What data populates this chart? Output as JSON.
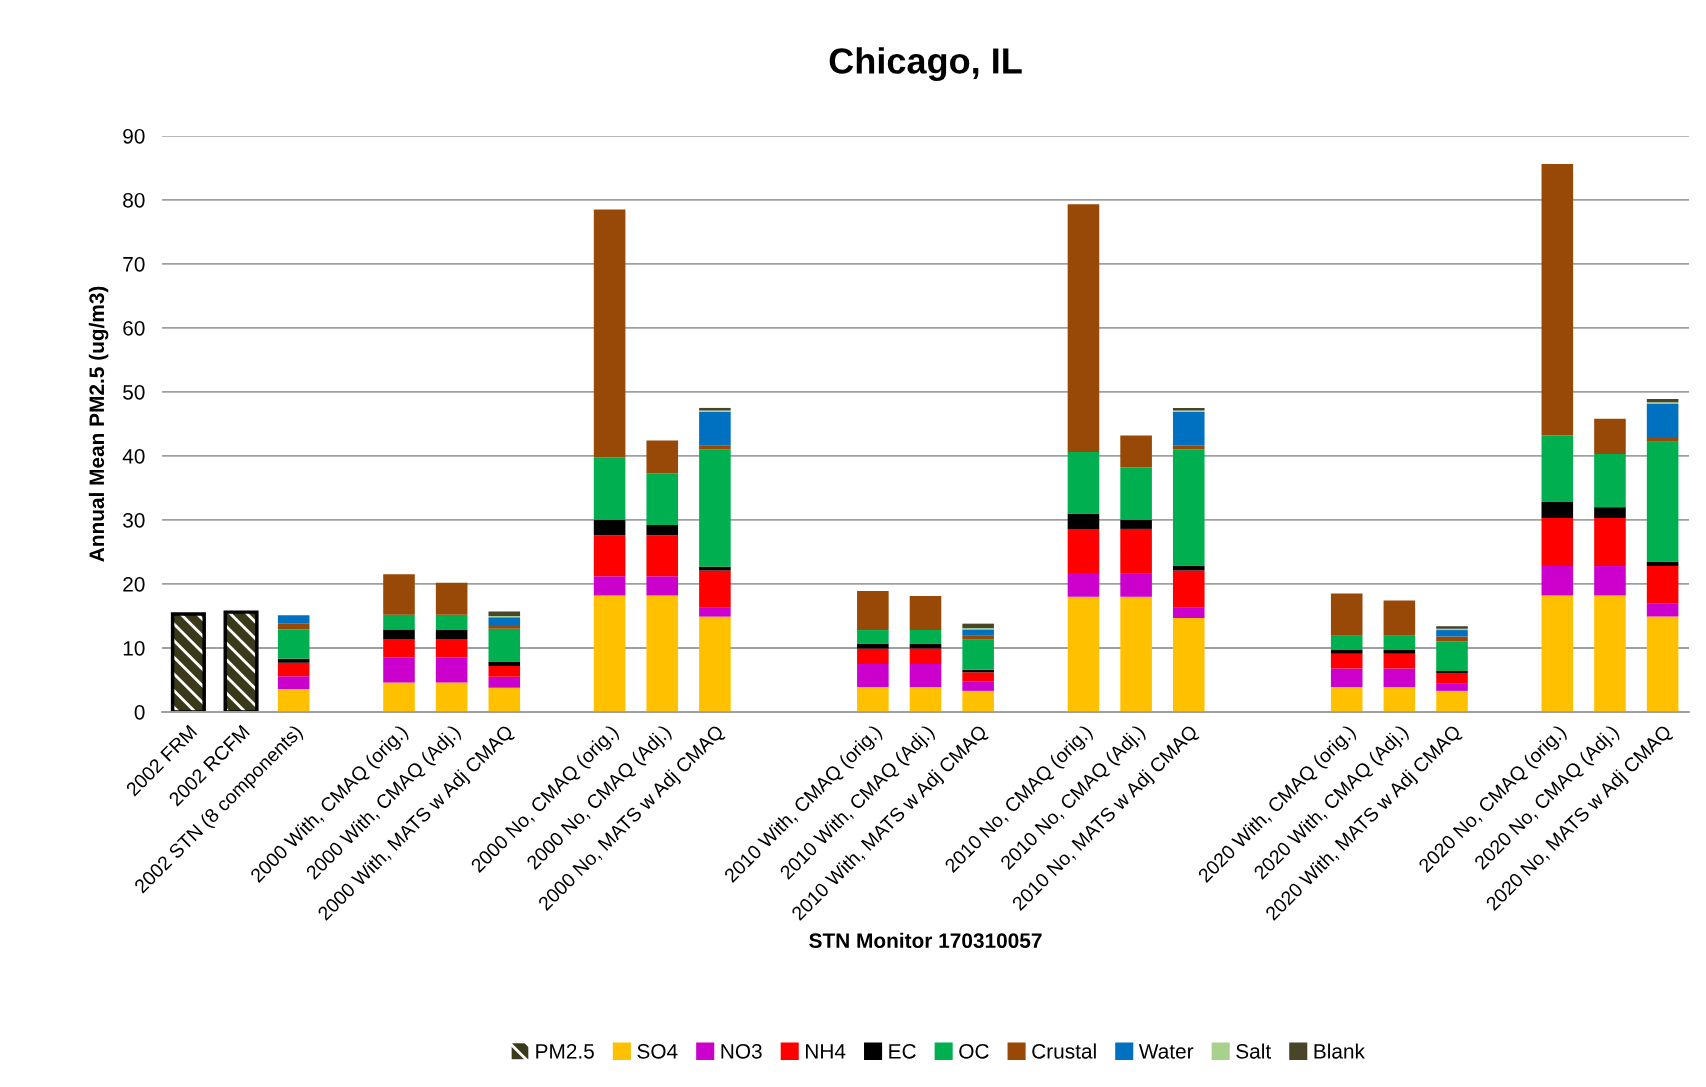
{
  "chart_data": {
    "type": "bar",
    "title": "Chicago, IL",
    "xlabel": "STN Monitor 170310057",
    "ylabel": "Annual Mean PM2.5 (ug/m3)",
    "stacked": true,
    "grid": "y",
    "legend": "bottom",
    "ylim": [
      0,
      90
    ],
    "yticks": [
      0,
      10,
      20,
      30,
      40,
      50,
      60,
      70,
      80,
      90
    ],
    "categories": [
      "2002 FRM",
      "2002 RCFM",
      "2002 STN (8 components)",
      null,
      "2000 With, CMAQ (orig.)",
      "2000 With, CMAQ (Adj.)",
      "2000 With, MATS w Adj CMAQ",
      null,
      "2000 No, CMAQ (orig.)",
      "2000 No, CMAQ (Adj.)",
      "2000 No, MATS w Adj CMAQ",
      null,
      null,
      "2010 With, CMAQ (orig.)",
      "2010 With, CMAQ (Adj.)",
      "2010 With, MATS w Adj CMAQ",
      null,
      "2010 No, CMAQ (orig.)",
      "2010 No, CMAQ (Adj.)",
      "2010 No, MATS w Adj CMAQ",
      null,
      null,
      "2020 With, CMAQ (orig.)",
      "2020 With, CMAQ (Adj.)",
      "2020 With, MATS w Adj CMAQ",
      null,
      "2020 No, CMAQ (orig.)",
      "2020 No, CMAQ (Adj.)",
      "2020 No, MATS w Adj CMAQ"
    ],
    "series": [
      {
        "name": "PM2.5",
        "color": "#3a3a1a",
        "values": [
          15.3,
          15.6,
          null,
          null,
          null,
          null,
          null,
          null,
          null,
          null,
          null,
          null,
          null,
          null,
          null,
          null,
          null,
          null,
          null,
          null,
          null,
          null,
          null,
          null,
          null,
          null,
          null,
          null,
          null
        ]
      },
      {
        "name": "SO4",
        "color": "#ffc000",
        "values": [
          null,
          null,
          3.6,
          null,
          4.6,
          4.6,
          3.8,
          null,
          18.2,
          18.2,
          14.9,
          null,
          null,
          3.9,
          3.9,
          3.3,
          null,
          18.0,
          18.0,
          14.7,
          null,
          null,
          3.9,
          3.9,
          3.3,
          null,
          18.2,
          18.2,
          14.9
        ]
      },
      {
        "name": "NO3",
        "color": "#cc00cc",
        "values": [
          null,
          null,
          2.0,
          null,
          3.9,
          3.9,
          1.7,
          null,
          3.0,
          3.0,
          1.4,
          null,
          null,
          3.6,
          3.6,
          1.5,
          null,
          3.7,
          3.7,
          1.6,
          null,
          null,
          2.9,
          2.9,
          1.1,
          null,
          4.6,
          4.6,
          2.0
        ]
      },
      {
        "name": "NH4",
        "color": "#ff0000",
        "values": [
          null,
          null,
          2.1,
          null,
          2.9,
          2.9,
          1.7,
          null,
          6.4,
          6.4,
          5.8,
          null,
          null,
          2.4,
          2.4,
          1.4,
          null,
          6.9,
          6.9,
          5.8,
          null,
          null,
          2.3,
          2.3,
          1.7,
          null,
          7.5,
          7.5,
          5.9
        ]
      },
      {
        "name": "EC",
        "color": "#000000",
        "values": [
          null,
          null,
          0.6,
          null,
          1.5,
          1.5,
          0.7,
          null,
          2.4,
          1.6,
          0.6,
          null,
          null,
          0.8,
          0.8,
          0.4,
          null,
          2.4,
          1.4,
          0.8,
          null,
          null,
          0.6,
          0.6,
          0.3,
          null,
          2.5,
          1.7,
          0.7
        ]
      },
      {
        "name": "OC",
        "color": "#00b050",
        "values": [
          null,
          null,
          4.6,
          null,
          2.3,
          2.3,
          5.1,
          null,
          9.8,
          8.1,
          18.3,
          null,
          null,
          2.1,
          2.1,
          4.7,
          null,
          9.6,
          8.2,
          18.1,
          null,
          null,
          2.2,
          2.2,
          4.6,
          null,
          10.4,
          8.3,
          18.7
        ]
      },
      {
        "name": "Crustal",
        "color": "#984807",
        "values": [
          null,
          null,
          0.9,
          null,
          6.3,
          5.0,
          0.6,
          null,
          38.7,
          5.1,
          0.6,
          null,
          null,
          6.1,
          5.3,
          0.6,
          null,
          38.7,
          5.0,
          0.6,
          null,
          null,
          6.6,
          5.5,
          0.8,
          null,
          42.4,
          5.5,
          0.6
        ]
      },
      {
        "name": "Water",
        "color": "#0070c0",
        "values": [
          null,
          null,
          1.3,
          null,
          null,
          null,
          1.2,
          null,
          null,
          null,
          5.3,
          null,
          null,
          null,
          null,
          1.0,
          null,
          null,
          null,
          5.3,
          null,
          null,
          null,
          null,
          1.0,
          null,
          null,
          null,
          5.4
        ]
      },
      {
        "name": "Salt",
        "color": "#a9d18e",
        "values": [
          null,
          null,
          null,
          null,
          null,
          null,
          0.2,
          null,
          null,
          null,
          0.2,
          null,
          null,
          null,
          null,
          0.2,
          null,
          null,
          null,
          0.2,
          null,
          null,
          null,
          null,
          0.2,
          null,
          null,
          null,
          0.2
        ]
      },
      {
        "name": "Blank",
        "color": "#494529",
        "values": [
          null,
          null,
          null,
          null,
          null,
          null,
          0.7,
          null,
          null,
          null,
          0.4,
          null,
          null,
          null,
          null,
          0.7,
          null,
          null,
          null,
          0.4,
          null,
          null,
          null,
          null,
          0.4,
          null,
          null,
          null,
          0.5
        ]
      }
    ]
  }
}
